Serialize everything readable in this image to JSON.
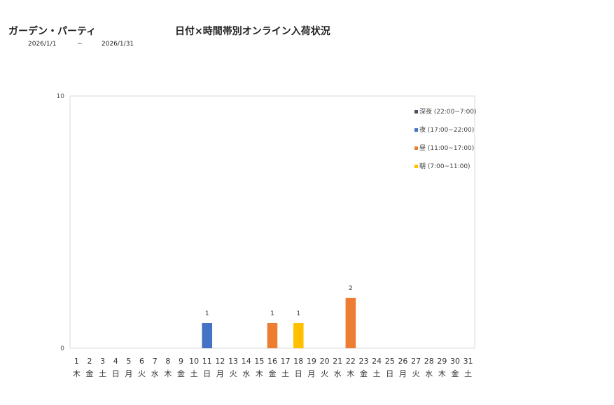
{
  "header": {
    "store_name": "ガーデン・パーティ",
    "title": "日付×時間帯別オンライン入荷状況",
    "date_from": "2026/1/1",
    "date_sep": "~",
    "date_to": "2026/1/31"
  },
  "chart_data": {
    "type": "bar",
    "stacked": true,
    "categories": [
      "1",
      "2",
      "3",
      "4",
      "5",
      "6",
      "7",
      "8",
      "9",
      "10",
      "11",
      "12",
      "13",
      "14",
      "15",
      "16",
      "17",
      "18",
      "19",
      "20",
      "21",
      "22",
      "23",
      "24",
      "25",
      "26",
      "27",
      "28",
      "29",
      "30",
      "31"
    ],
    "weekdays": [
      "木",
      "金",
      "土",
      "日",
      "月",
      "火",
      "水",
      "木",
      "金",
      "土",
      "日",
      "月",
      "火",
      "水",
      "木",
      "金",
      "土",
      "日",
      "月",
      "火",
      "水",
      "木",
      "金",
      "土",
      "日",
      "月",
      "火",
      "水",
      "木",
      "金",
      "土"
    ],
    "ylim": [
      0,
      10
    ],
    "yticks": [
      0,
      10
    ],
    "legend_position": "top-right",
    "series": [
      {
        "name": "深夜 (22:00~7:00)",
        "color": "#44546a",
        "values": [
          0,
          0,
          0,
          0,
          0,
          0,
          0,
          0,
          0,
          0,
          0,
          0,
          0,
          0,
          0,
          0,
          0,
          0,
          0,
          0,
          0,
          0,
          0,
          0,
          0,
          0,
          0,
          0,
          0,
          0,
          0
        ]
      },
      {
        "name": "夜 (17:00~22:00)",
        "color": "#4472c4",
        "values": [
          0,
          0,
          0,
          0,
          0,
          0,
          0,
          0,
          0,
          0,
          1,
          0,
          0,
          0,
          0,
          0,
          0,
          0,
          0,
          0,
          0,
          0,
          0,
          0,
          0,
          0,
          0,
          0,
          0,
          0,
          0
        ]
      },
      {
        "name": "昼 (11:00~17:00)",
        "color": "#ed7d31",
        "values": [
          0,
          0,
          0,
          0,
          0,
          0,
          0,
          0,
          0,
          0,
          0,
          0,
          0,
          0,
          0,
          1,
          0,
          0,
          0,
          0,
          0,
          2,
          0,
          0,
          0,
          0,
          0,
          0,
          0,
          0,
          0
        ]
      },
      {
        "name": "朝 (7:00~11:00)",
        "color": "#ffc000",
        "values": [
          0,
          0,
          0,
          0,
          0,
          0,
          0,
          0,
          0,
          0,
          0,
          0,
          0,
          0,
          0,
          0,
          0,
          1,
          0,
          0,
          0,
          0,
          0,
          0,
          0,
          0,
          0,
          0,
          0,
          0,
          0
        ]
      }
    ],
    "totals": [
      0,
      0,
      0,
      0,
      0,
      0,
      0,
      0,
      0,
      0,
      1,
      0,
      0,
      0,
      0,
      1,
      0,
      1,
      0,
      0,
      0,
      2,
      0,
      0,
      0,
      0,
      0,
      0,
      0,
      0,
      0
    ],
    "grid": false
  }
}
